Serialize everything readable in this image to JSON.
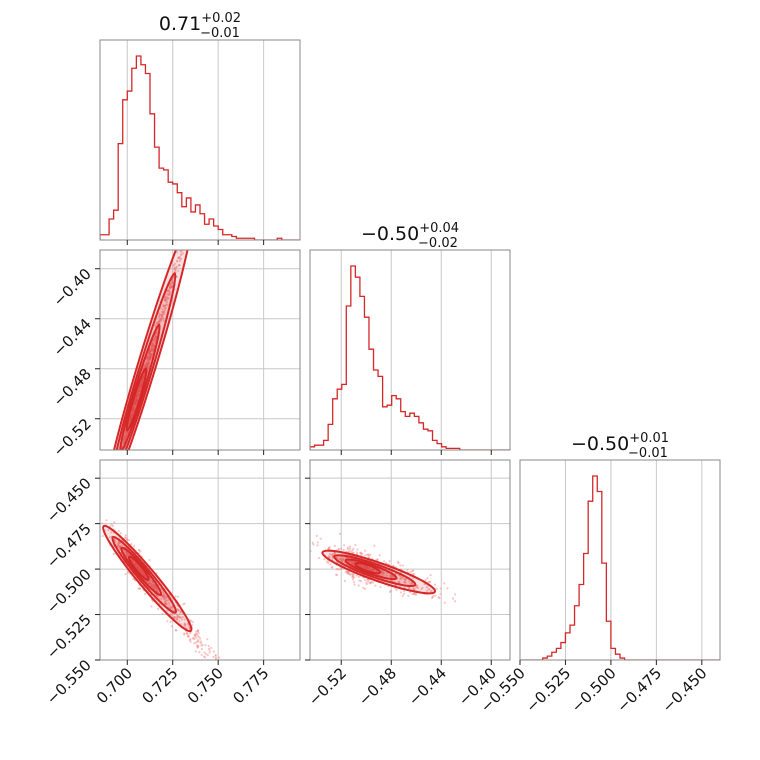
{
  "chart_data": {
    "type": "corner",
    "color": "#d62728",
    "parameters": [
      {
        "title": {
          "median": "0.71",
          "plus": "+0.02",
          "minus": "−0.01"
        },
        "range": [
          0.685,
          0.795
        ],
        "ticks": [
          0.7,
          0.725,
          0.75,
          0.775
        ],
        "tick_labels": [
          "0.700",
          "0.725",
          "0.750",
          "0.775"
        ]
      },
      {
        "title": {
          "median": "−0.50",
          "plus": "+0.04",
          "minus": "−0.02"
        },
        "range": [
          -0.545,
          -0.385
        ],
        "ticks": [
          -0.52,
          -0.48,
          -0.44,
          -0.4
        ],
        "tick_labels": [
          "−0.52",
          "−0.48",
          "−0.44",
          "−0.40"
        ]
      },
      {
        "title": {
          "median": "−0.50",
          "plus": "+0.01",
          "minus": "−0.01"
        },
        "range": [
          -0.55,
          -0.44
        ],
        "ticks": [
          -0.55,
          -0.525,
          -0.5,
          -0.475,
          -0.45
        ],
        "tick_labels": [
          "−0.550",
          "−0.525",
          "−0.500",
          "−0.475",
          "−0.450"
        ]
      }
    ],
    "histograms": [
      {
        "bin_start": 0.685,
        "bin_width": 0.0025,
        "counts": [
          3,
          3,
          12,
          17,
          55,
          80,
          85,
          98,
          105,
          100,
          95,
          72,
          53,
          41,
          40,
          33,
          32,
          27,
          19,
          24,
          16,
          20,
          15,
          9,
          12,
          8,
          6,
          3,
          3,
          2,
          1,
          1,
          1,
          1,
          0,
          0,
          0,
          0,
          0,
          1,
          0,
          0,
          0,
          0
        ]
      },
      {
        "bin_start": -0.545,
        "bin_width": 0.00363,
        "counts": [
          2,
          3,
          3,
          6,
          16,
          32,
          38,
          41,
          90,
          115,
          108,
          96,
          83,
          63,
          50,
          46,
          27,
          28,
          34,
          32,
          24,
          21,
          23,
          21,
          17,
          13,
          12,
          6,
          4,
          2,
          1,
          1,
          1,
          0,
          0,
          0,
          0,
          0,
          0,
          0,
          0,
          0,
          0,
          0
        ]
      },
      {
        "bin_start": -0.55,
        "bin_width": 0.0025,
        "counts": [
          0,
          0,
          0,
          0,
          0,
          1,
          2,
          4,
          6,
          9,
          14,
          18,
          28,
          39,
          55,
          82,
          95,
          87,
          50,
          20,
          6,
          3,
          1,
          0,
          0,
          0,
          0,
          0,
          0,
          0,
          0,
          0,
          0,
          0,
          0,
          0,
          0,
          0,
          0,
          0,
          0,
          0,
          0,
          0
        ]
      }
    ],
    "correlations": [
      {
        "row": 1,
        "col": 0,
        "slope": 4.8,
        "spread": 0.0045,
        "shape": "tight-linear"
      },
      {
        "row": 2,
        "col": 0,
        "slope": -1.2,
        "spread": 0.004,
        "shape": "linear"
      },
      {
        "row": 2,
        "col": 1,
        "slope": -0.24,
        "spread": 0.0038,
        "shape": "linear"
      }
    ],
    "grid": true
  }
}
